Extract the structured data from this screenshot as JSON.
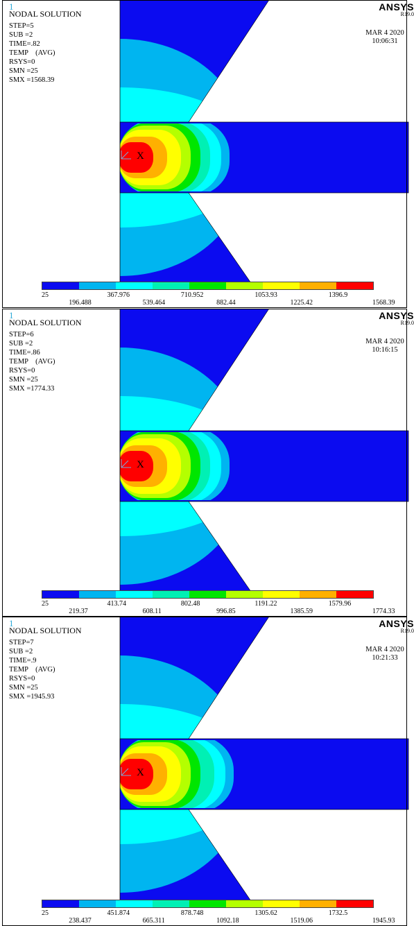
{
  "colors": {
    "blue": "#0b0bf0",
    "sky": "#00b5f0",
    "cyan": "#00ffff",
    "aqua": "#00f0b4",
    "green": "#00e600",
    "yellowgreen": "#b4ff00",
    "yellow": "#ffff00",
    "orange": "#ffb000",
    "red": "#ff0000"
  },
  "legend_colors": [
    "#0b0bf0",
    "#00b5f0",
    "#00ffff",
    "#00f0b4",
    "#00e600",
    "#b4ff00",
    "#ffff00",
    "#ffb000",
    "#ff0000"
  ],
  "brand": {
    "logo": "ANSYS",
    "version": "R19.0"
  },
  "panels": [
    {
      "index": "1",
      "title": "NODAL SOLUTION",
      "step": "STEP=5",
      "sub": "SUB =2",
      "time": "TIME=.82",
      "temp": "TEMP    (AVG)",
      "rsys": "RSYS=0",
      "smn": "SMN =25",
      "smx": "SMX =1568.39",
      "date": "MAR  4 2020",
      "clock": "10:06:31",
      "axis_label": "X",
      "legend_top": [
        "25",
        "367.976",
        "710.952",
        "1053.93",
        "1396.9"
      ],
      "legend_bottom": [
        "196.488",
        "539.464",
        "882.44",
        "1225.42",
        "1568.39"
      ]
    },
    {
      "index": "1",
      "title": "NODAL SOLUTION",
      "step": "STEP=6",
      "sub": "SUB =2",
      "time": "TIME=.86",
      "temp": "TEMP    (AVG)",
      "rsys": "RSYS=0",
      "smn": "SMN =25",
      "smx": "SMX =1774.33",
      "date": "MAR  4 2020",
      "clock": "10:16:15",
      "axis_label": "X",
      "legend_top": [
        "25",
        "413.74",
        "802.48",
        "1191.22",
        "1579.96"
      ],
      "legend_bottom": [
        "219.37",
        "608.11",
        "996.85",
        "1385.59",
        "1774.33"
      ]
    },
    {
      "index": "1",
      "title": "NODAL SOLUTION",
      "step": "STEP=7",
      "sub": "SUB =2",
      "time": "TIME=.9",
      "temp": "TEMP    (AVG)",
      "rsys": "RSYS=0",
      "smn": "SMN =25",
      "smx": "SMX =1945.93",
      "date": "MAR  4 2020",
      "clock": "10:21:33",
      "axis_label": "X",
      "legend_top": [
        "25",
        "451.874",
        "878.748",
        "1305.62",
        "1732.5"
      ],
      "legend_bottom": [
        "238.437",
        "665.311",
        "1092.18",
        "1519.06",
        "1945.93"
      ]
    }
  ]
}
